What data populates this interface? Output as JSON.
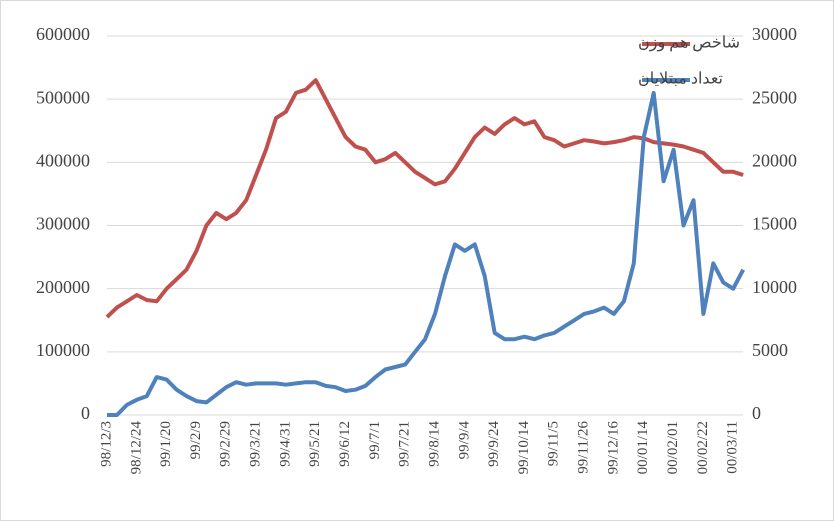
{
  "chart_data": {
    "type": "line",
    "categories": [
      "98/12/3",
      null,
      null,
      "98/12/24",
      null,
      null,
      "99/1/20",
      null,
      null,
      "99/2/9",
      null,
      null,
      "99/2/29",
      null,
      null,
      "99/3/21",
      null,
      null,
      "99/4/31",
      null,
      null,
      "99/5/21",
      null,
      null,
      "99/6/12",
      null,
      null,
      "99/7/1",
      null,
      null,
      "99/7/21",
      null,
      null,
      "99/8/14",
      null,
      null,
      "99/9/4",
      null,
      null,
      "99/9/24",
      null,
      null,
      "99/10/14",
      null,
      null,
      "99/11/5",
      null,
      null,
      "99/11/26",
      null,
      null,
      "99/12/16",
      null,
      null,
      "00/01/14",
      null,
      null,
      "00/02/01",
      null,
      null,
      "00/02/22",
      null,
      null,
      "00/03/11",
      null
    ],
    "series": [
      {
        "name": "شاخص هم وزن",
        "color": "#c0504d",
        "values": [
          155000,
          170000,
          180000,
          190000,
          182000,
          180000,
          200000,
          215000,
          230000,
          260000,
          300000,
          320000,
          310000,
          320000,
          340000,
          380000,
          420000,
          470000,
          480000,
          510000,
          515000,
          530000,
          500000,
          470000,
          440000,
          425000,
          420000,
          400000,
          405000,
          415000,
          400000,
          385000,
          375000,
          365000,
          370000,
          390000,
          415000,
          440000,
          455000,
          445000,
          460000,
          470000,
          460000,
          465000,
          440000,
          435000,
          425000,
          430000,
          435000,
          433000,
          430000,
          432000,
          435000,
          440000,
          438000,
          432000,
          430000,
          428000,
          425000,
          420000,
          415000,
          400000,
          385000,
          385000,
          380000
        ]
      },
      {
        "name": "تعداد مبتلایان",
        "color": "#4f81bd",
        "axis": "y2",
        "values": [
          0,
          0,
          800,
          1200,
          1500,
          3000,
          2800,
          2000,
          1500,
          1100,
          1000,
          1600,
          2200,
          2600,
          2400,
          2500,
          2500,
          2500,
          2400,
          2500,
          2600,
          2600,
          2300,
          2200,
          1900,
          2000,
          2300,
          3000,
          3600,
          3800,
          4000,
          5000,
          6000,
          8000,
          11000,
          13500,
          13000,
          13500,
          11000,
          6500,
          6000,
          6000,
          6200,
          6000,
          6300,
          6500,
          7000,
          7500,
          8000,
          8200,
          8500,
          8000,
          9000,
          12000,
          22000,
          25500,
          18500,
          21000,
          15000,
          17000,
          8000,
          12000,
          10500,
          10000,
          11500
        ]
      }
    ],
    "ylim": [
      0,
      600000
    ],
    "yticks": [
      0,
      100000,
      200000,
      300000,
      400000,
      500000,
      600000
    ],
    "y2lim": [
      0,
      30000
    ],
    "y2ticks": [
      0,
      5000,
      10000,
      15000,
      20000,
      25000,
      30000
    ],
    "grid": true,
    "legend": "top-right"
  }
}
